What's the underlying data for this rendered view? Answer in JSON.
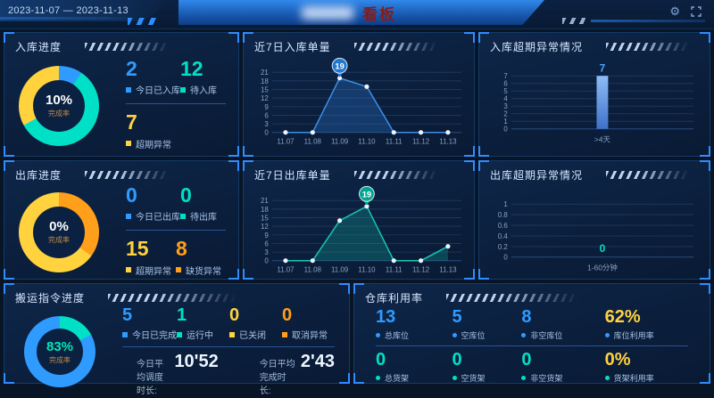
{
  "header": {
    "date_range": "2023-11-07 — 2023-11-13",
    "app_title": "看板",
    "icons": [
      {
        "name": "settings-icon",
        "glyph": "⚙"
      },
      {
        "name": "fullscreen-icon"
      }
    ]
  },
  "panels": {
    "inbound_progress": {
      "title": "入库进度",
      "donut": {
        "percent": "10%",
        "caption": "完成率",
        "percent_color": "#ffffff",
        "segments": [
          {
            "color": "#2f9bff",
            "value": 9.5
          },
          {
            "color": "#00e0c6",
            "value": 57.5
          },
          {
            "color": "#ffd23e",
            "value": 33
          }
        ]
      },
      "stats": [
        {
          "value": "2",
          "label": "今日已入库",
          "color": "#2f9bff"
        },
        {
          "value": "12",
          "label": "待入库",
          "color": "#00e0c6"
        },
        {
          "value": "7",
          "label": "超期异常",
          "color": "#ffd23e"
        }
      ]
    },
    "inbound_7d": {
      "title": "近7日入库单量"
    },
    "inbound_overdue": {
      "title": "入库超期异常情况"
    },
    "outbound_progress": {
      "title": "出库进度",
      "donut": {
        "percent": "0%",
        "caption": "完成率",
        "percent_color": "#ffffff",
        "segments": [
          {
            "color": "#ff9f1a",
            "value": 35
          },
          {
            "color": "#ffd23e",
            "value": 65
          }
        ]
      },
      "stats": [
        {
          "value": "0",
          "label": "今日已出库",
          "color": "#2f9bff"
        },
        {
          "value": "0",
          "label": "待出库",
          "color": "#00e0c6"
        },
        {
          "value": "15",
          "label": "超期异常",
          "color": "#ffd23e"
        },
        {
          "value": "8",
          "label": "缺货异常",
          "color": "#ff9f1a"
        }
      ]
    },
    "outbound_7d": {
      "title": "近7日出库单量"
    },
    "outbound_overdue": {
      "title": "出库超期异常情况"
    },
    "transport": {
      "title": "搬运指令进度",
      "donut": {
        "percent": "83%",
        "caption": "完成率",
        "percent_color": "#00e6b8",
        "segments": [
          {
            "color": "#00e0c6",
            "value": 17
          },
          {
            "color": "#2f9bff",
            "value": 83
          }
        ]
      },
      "stats": [
        {
          "value": "5",
          "label": "今日已完成",
          "color": "#2f9bff"
        },
        {
          "value": "1",
          "label": "运行中",
          "color": "#00e0c6"
        },
        {
          "value": "0",
          "label": "已关闭",
          "color": "#ffd23e"
        },
        {
          "value": "0",
          "label": "取消异常",
          "color": "#ff9f1a"
        }
      ],
      "times": [
        {
          "label": "今日平均调度时长:",
          "value": "10'52"
        },
        {
          "label": "今日平均完成时长:",
          "value": "2'43"
        }
      ]
    },
    "warehouse": {
      "title": "仓库利用率",
      "row1": [
        {
          "value": "13",
          "label": "总库位",
          "color": "#2f9bff",
          "bullet": "#2f9bff"
        },
        {
          "value": "5",
          "label": "空库位",
          "color": "#2f9bff",
          "bullet": "#2f9bff"
        },
        {
          "value": "8",
          "label": "非空库位",
          "color": "#2f9bff",
          "bullet": "#2f9bff"
        },
        {
          "value": "62%",
          "label": "库位利用率",
          "color": "#ffd23e",
          "bullet": "#2f9bff"
        }
      ],
      "row2": [
        {
          "value": "0",
          "label": "总货架",
          "color": "#00e0c6",
          "bullet": "#00e0c6"
        },
        {
          "value": "0",
          "label": "空货架",
          "color": "#00e0c6",
          "bullet": "#00e0c6"
        },
        {
          "value": "0",
          "label": "非空货架",
          "color": "#00e0c6",
          "bullet": "#00e0c6"
        },
        {
          "value": "0%",
          "label": "货架利用率",
          "color": "#ffd23e",
          "bullet": "#00e0c6"
        }
      ]
    }
  },
  "chart_data": [
    {
      "type": "line",
      "title": "近7日入库单量",
      "x": [
        "11.07",
        "11.08",
        "11.09",
        "11.10",
        "11.11",
        "11.12",
        "11.13"
      ],
      "values": [
        0,
        0,
        19,
        16,
        0,
        0,
        0
      ],
      "ylim": [
        0,
        21
      ],
      "ytick_step": 3,
      "grid": true,
      "marker": {
        "index": 2,
        "label": "19",
        "color": "#1f78d1"
      },
      "line_color": "#3d8fe8",
      "fill_color": "rgba(47,125,220,0.30)"
    },
    {
      "type": "line",
      "title": "近7日出库单量",
      "x": [
        "11.07",
        "11.08",
        "11.09",
        "11.10",
        "11.11",
        "11.12",
        "11.13"
      ],
      "values": [
        0,
        0,
        14,
        19,
        0,
        0,
        5
      ],
      "ylim": [
        0,
        21
      ],
      "ytick_step": 3,
      "grid": true,
      "marker": {
        "index": 3,
        "label": "19",
        "color": "#00a693"
      },
      "line_color": "#19c4b2",
      "fill_color": "rgba(20,170,155,0.30)"
    },
    {
      "type": "bar",
      "title": "入库超期异常情况",
      "categories": [
        ">4天"
      ],
      "values": [
        7
      ],
      "ylim": [
        0,
        7
      ],
      "ytick_step": 1,
      "grid": true,
      "bar_color_top": "#8fbcf7",
      "bar_color_bottom": "#3f72c8",
      "label_color": "#4da3ff"
    },
    {
      "type": "bar",
      "title": "出库超期异常情况",
      "categories": [
        "1-60分钟"
      ],
      "values": [
        0
      ],
      "ylim": [
        0,
        1
      ],
      "ytick_step": 0.2,
      "grid": true,
      "bar_color_top": "#19c4b2",
      "bar_color_bottom": "#19c4b2",
      "label_color": "#00e0c6"
    },
    {
      "type": "pie",
      "title": "入库进度",
      "labels": [
        "今日已入库",
        "待入库",
        "超期异常"
      ],
      "values": [
        2,
        12,
        7
      ],
      "center_text": "10% 完成率"
    },
    {
      "type": "pie",
      "title": "出库进度",
      "labels": [
        "今日已出库",
        "待出库",
        "超期异常",
        "缺货异常"
      ],
      "values": [
        0,
        0,
        15,
        8
      ],
      "center_text": "0% 完成率"
    },
    {
      "type": "pie",
      "title": "搬运指令进度",
      "labels": [
        "今日已完成",
        "运行中",
        "已关闭",
        "取消异常"
      ],
      "values": [
        5,
        1,
        0,
        0
      ],
      "center_text": "83% 完成率"
    }
  ]
}
